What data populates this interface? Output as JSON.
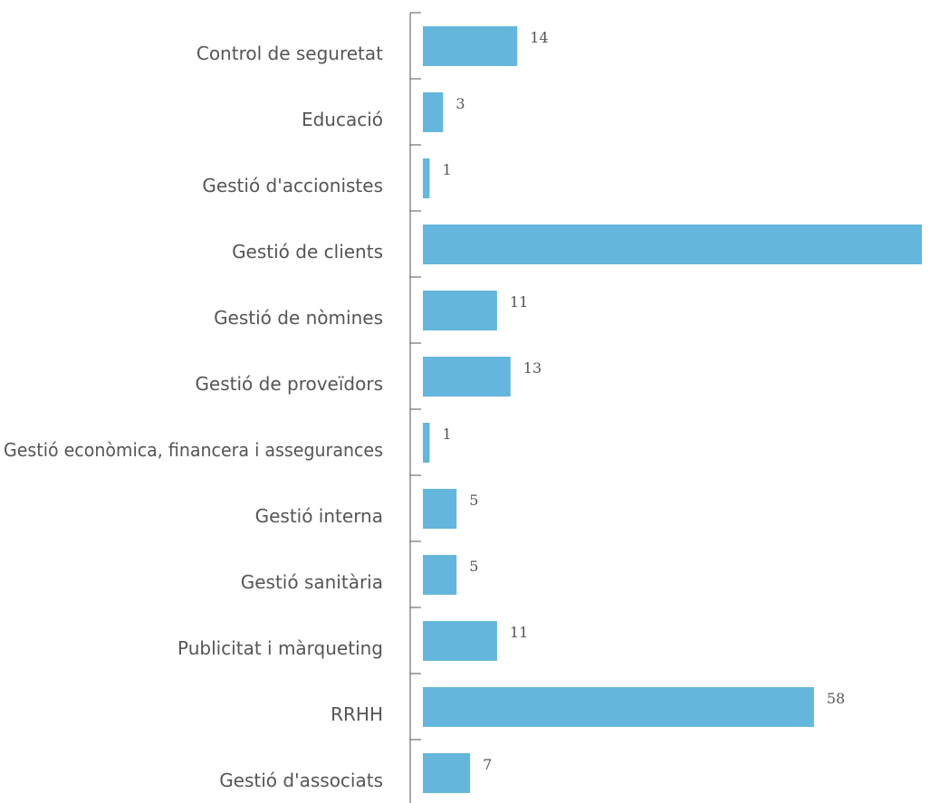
{
  "chart_data": {
    "type": "bar",
    "orientation": "horizontal",
    "categories": [
      "Control de seguretat",
      "Educació",
      "Gestió d'accionistes",
      "Gestió de clients",
      "Gestió de nòmines",
      "Gestió de proveïdors",
      "Gestió econòmica, financera i assegurances",
      "Gestió interna",
      "Gestió sanitària",
      "Publicitat i màrqueting",
      "RRHH",
      "Gestió d'associats"
    ],
    "values": [
      14,
      3,
      1,
      74,
      11,
      13,
      1,
      5,
      5,
      11,
      58,
      7
    ],
    "title": "",
    "xlabel": "",
    "ylabel": "",
    "xlim": [
      0,
      74
    ],
    "grid": false,
    "legend": "none",
    "bar_color": "#65b6dc",
    "text_color": "#555555",
    "axis_color": "#555555"
  }
}
